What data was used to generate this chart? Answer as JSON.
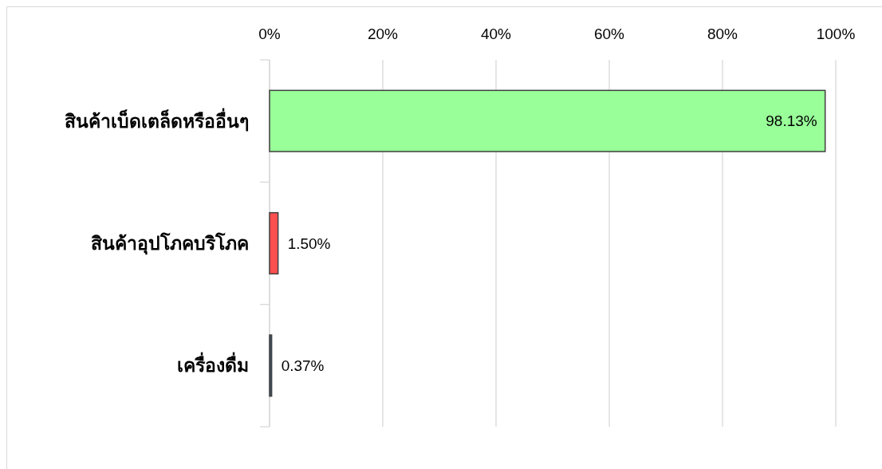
{
  "chart_data": {
    "type": "bar",
    "orientation": "horizontal",
    "categories": [
      "สินค้าเบ็ดเตล็ดหรืออื่นๆ",
      "สินค้าอุปโภคบริโภค",
      "เครื่องดื่ม"
    ],
    "values": [
      98.13,
      1.5,
      0.37
    ],
    "colors": [
      "#99ff99",
      "#ff5050",
      "#44546a"
    ],
    "value_labels": [
      "98.13%",
      "1.50%",
      "0.37%"
    ],
    "xlim": [
      0,
      100
    ],
    "xticks": [
      {
        "value": 0,
        "label": "0%"
      },
      {
        "value": 20,
        "label": "20%"
      },
      {
        "value": 40,
        "label": "40%"
      },
      {
        "value": 60,
        "label": "60%"
      },
      {
        "value": 80,
        "label": "80%"
      },
      {
        "value": 100,
        "label": "100%"
      }
    ],
    "grid": "x"
  }
}
